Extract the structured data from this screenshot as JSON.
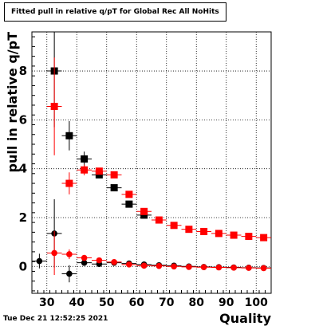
{
  "title": "Fitted pull in relative q/pT for Global Rec All NoHits",
  "timestamp": "Tue Dec 21 12:52:25 2021",
  "chart_data": {
    "type": "scatter",
    "xlabel": "Quality",
    "ylabel": "pull in relative q/pT",
    "xlim": [
      25,
      105
    ],
    "ylim": [
      -1.1,
      9.6
    ],
    "xticks": [
      30,
      40,
      50,
      60,
      70,
      80,
      90,
      100
    ],
    "yticks": [
      0,
      2,
      4,
      6,
      8
    ],
    "grid": true,
    "legend": null,
    "series": [
      {
        "marker": "square",
        "color": "#000000",
        "points": [
          {
            "x": 32.5,
            "y": 8.0,
            "yerr": 2.3
          },
          {
            "x": 37.5,
            "y": 5.35,
            "yerr": 0.6
          },
          {
            "x": 42.5,
            "y": 4.4,
            "yerr": 0.3
          },
          {
            "x": 47.5,
            "y": 3.75,
            "yerr": 0.12
          },
          {
            "x": 52.5,
            "y": 3.22,
            "yerr": 0.1
          },
          {
            "x": 57.5,
            "y": 2.55,
            "yerr": 0.08
          },
          {
            "x": 62.5,
            "y": 2.1,
            "yerr": 0.07
          }
        ]
      },
      {
        "marker": "square",
        "color": "#ff0000",
        "points": [
          {
            "x": 32.5,
            "y": 6.55,
            "yerr": 2.0
          },
          {
            "x": 37.5,
            "y": 3.4,
            "yerr": 0.45
          },
          {
            "x": 42.5,
            "y": 3.95,
            "yerr": 0.22
          },
          {
            "x": 47.5,
            "y": 3.9,
            "yerr": 0.12
          },
          {
            "x": 52.5,
            "y": 3.75,
            "yerr": 0.08
          },
          {
            "x": 57.5,
            "y": 2.95,
            "yerr": 0.06
          },
          {
            "x": 62.5,
            "y": 2.25,
            "yerr": 0.05
          },
          {
            "x": 67.5,
            "y": 1.9,
            "yerr": 0.04
          },
          {
            "x": 72.5,
            "y": 1.68,
            "yerr": 0.04
          },
          {
            "x": 77.5,
            "y": 1.52,
            "yerr": 0.03
          },
          {
            "x": 82.5,
            "y": 1.43,
            "yerr": 0.03
          },
          {
            "x": 87.5,
            "y": 1.35,
            "yerr": 0.03
          },
          {
            "x": 92.5,
            "y": 1.28,
            "yerr": 0.03
          },
          {
            "x": 97.5,
            "y": 1.23,
            "yerr": 0.03
          },
          {
            "x": 102.5,
            "y": 1.18,
            "yerr": 0.03
          }
        ]
      },
      {
        "marker": "circle",
        "color": "#000000",
        "points": [
          {
            "x": 27.5,
            "y": 0.22,
            "yerr": 0.3
          },
          {
            "x": 32.5,
            "y": 1.35,
            "yerr": 1.4
          },
          {
            "x": 37.5,
            "y": -0.3,
            "yerr": 0.35
          },
          {
            "x": 42.5,
            "y": 0.15,
            "yerr": 0.1
          },
          {
            "x": 47.5,
            "y": 0.1,
            "yerr": 0.06
          },
          {
            "x": 52.5,
            "y": 0.15,
            "yerr": 0.04
          },
          {
            "x": 57.5,
            "y": 0.12,
            "yerr": 0.03
          },
          {
            "x": 62.5,
            "y": 0.08,
            "yerr": 0.03
          },
          {
            "x": 67.5,
            "y": 0.05,
            "yerr": 0.02
          },
          {
            "x": 72.5,
            "y": 0.03,
            "yerr": 0.02
          },
          {
            "x": 77.5,
            "y": 0.0,
            "yerr": 0.02
          },
          {
            "x": 82.5,
            "y": -0.02,
            "yerr": 0.02
          },
          {
            "x": 87.5,
            "y": -0.03,
            "yerr": 0.02
          },
          {
            "x": 92.5,
            "y": -0.04,
            "yerr": 0.02
          },
          {
            "x": 97.5,
            "y": -0.05,
            "yerr": 0.02
          },
          {
            "x": 102.5,
            "y": -0.06,
            "yerr": 0.02
          }
        ]
      },
      {
        "marker": "circle",
        "color": "#ff0000",
        "points": [
          {
            "x": 32.5,
            "y": 0.55,
            "yerr": 0.9
          },
          {
            "x": 37.5,
            "y": 0.5,
            "yerr": 0.2
          },
          {
            "x": 42.5,
            "y": 0.35,
            "yerr": 0.08
          },
          {
            "x": 47.5,
            "y": 0.25,
            "yerr": 0.05
          },
          {
            "x": 52.5,
            "y": 0.18,
            "yerr": 0.03
          },
          {
            "x": 57.5,
            "y": 0.08,
            "yerr": 0.03
          },
          {
            "x": 62.5,
            "y": 0.03,
            "yerr": 0.02
          },
          {
            "x": 67.5,
            "y": 0.02,
            "yerr": 0.02
          },
          {
            "x": 72.5,
            "y": 0.0,
            "yerr": 0.02
          },
          {
            "x": 77.5,
            "y": -0.02,
            "yerr": 0.02
          },
          {
            "x": 82.5,
            "y": -0.03,
            "yerr": 0.02
          },
          {
            "x": 87.5,
            "y": -0.04,
            "yerr": 0.02
          },
          {
            "x": 92.5,
            "y": -0.05,
            "yerr": 0.02
          },
          {
            "x": 97.5,
            "y": -0.06,
            "yerr": 0.02
          },
          {
            "x": 102.5,
            "y": -0.07,
            "yerr": 0.02
          }
        ]
      }
    ]
  }
}
